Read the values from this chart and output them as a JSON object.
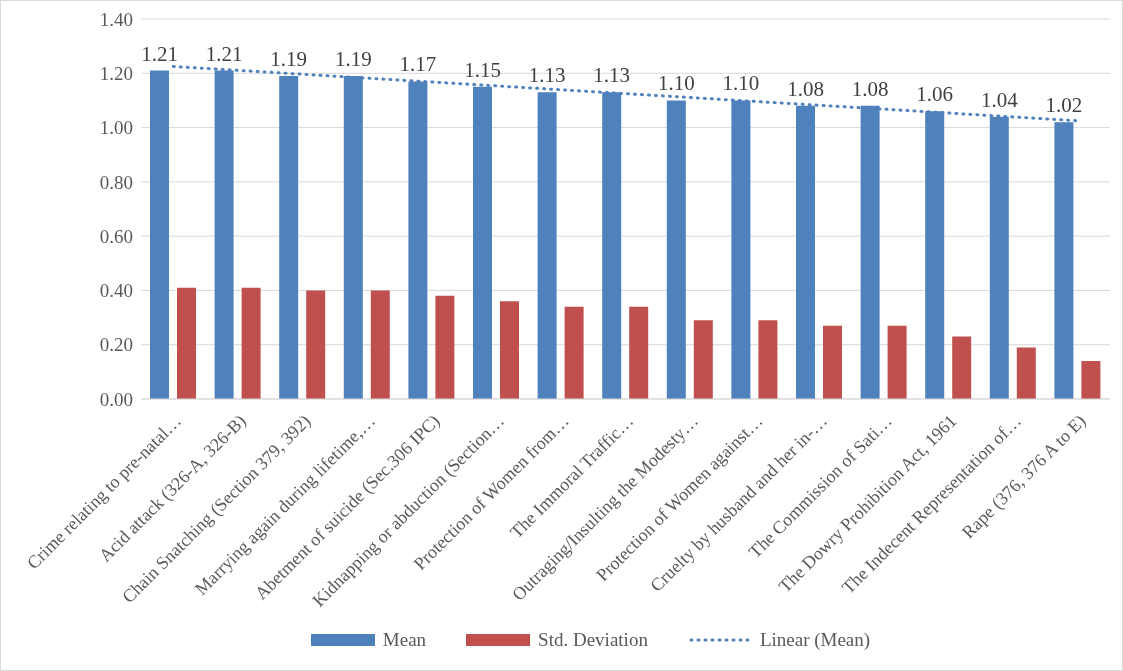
{
  "chart_data": {
    "type": "bar",
    "categories": [
      "Crime relating to pre-natal…",
      "Acid attack (326-A, 326-B)",
      "Chain Snatching (Section 379, 392)",
      "Marrying again during lifetime,…",
      "Abetment of suicide (Sec.306 IPC)",
      "Kidnapping or abduction (Section…",
      "Protection of Women from…",
      "The Immoral Traffic…",
      "Outraging/Insulting the Modesty…",
      "Protection of Women against…",
      "Cruelty by husband and her in-…",
      "The Commission of Sati…",
      "The Dowry Prohibition Act, 1961",
      "The Indecent Representation of…",
      "Rape (376, 376 A to E)"
    ],
    "series": [
      {
        "name": "Mean",
        "color": "#4f81bd",
        "values": [
          1.21,
          1.21,
          1.19,
          1.19,
          1.17,
          1.15,
          1.13,
          1.13,
          1.1,
          1.1,
          1.08,
          1.08,
          1.06,
          1.04,
          1.02
        ],
        "value_labels": [
          "1.21",
          "1.21",
          "1.19",
          "1.19",
          "1.17",
          "1.15",
          "1.13",
          "1.13",
          "1.10",
          "1.10",
          "1.08",
          "1.08",
          "1.06",
          "1.04",
          "1.02"
        ]
      },
      {
        "name": "Std. Deviation",
        "color": "#c0504d",
        "values": [
          0.41,
          0.41,
          0.4,
          0.4,
          0.38,
          0.36,
          0.34,
          0.34,
          0.29,
          0.29,
          0.27,
          0.27,
          0.23,
          0.19,
          0.14
        ]
      },
      {
        "name": "Linear (Mean)",
        "type": "line",
        "color": "#4f81bd",
        "line_style": "dotted",
        "x": [
          "Crime relating to pre-natal…",
          "Rape (376, 376 A to E)"
        ],
        "values": [
          1.225,
          1.025
        ]
      }
    ],
    "ylim": [
      0,
      1.4
    ],
    "yticks": [
      {
        "value": 0,
        "label": "0.00"
      },
      {
        "value": 0.2,
        "label": "0.20"
      },
      {
        "value": 0.4,
        "label": "0.40"
      },
      {
        "value": 0.6,
        "label": "0.60"
      },
      {
        "value": 0.8,
        "label": "0.80"
      },
      {
        "value": 1.0,
        "label": "1.00"
      },
      {
        "value": 1.2,
        "label": "1.20"
      },
      {
        "value": 1.4,
        "label": "1.40"
      }
    ],
    "grid": "y",
    "legend": "bottom"
  }
}
